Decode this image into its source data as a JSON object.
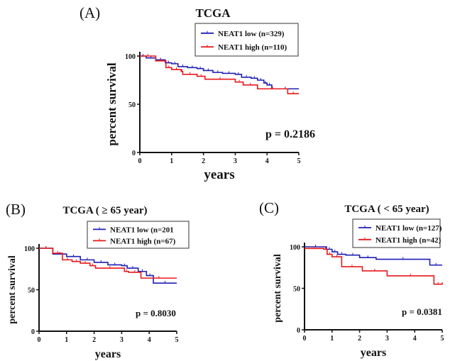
{
  "chart_data": [
    {
      "type": "line",
      "panel": "(A)",
      "title": "TCGA",
      "xlabel": "years",
      "ylabel": "percent survival",
      "xlim": [
        0,
        5
      ],
      "ylim": [
        0,
        100
      ],
      "xticks": [
        "0",
        "1",
        "2",
        "3",
        "4",
        "5"
      ],
      "yticks": [
        "0",
        "50",
        "100"
      ],
      "annotation": "p = 0.2186",
      "legend_position": "top-right",
      "series": [
        {
          "name": "NEAT1 low (n=329)",
          "color": "#1f1fb4",
          "points": [
            [
              0,
              100
            ],
            [
              0.2,
              98
            ],
            [
              0.5,
              96
            ],
            [
              0.8,
              93
            ],
            [
              1,
              92
            ],
            [
              1.2,
              89
            ],
            [
              1.5,
              88
            ],
            [
              1.8,
              87
            ],
            [
              2,
              85
            ],
            [
              2.3,
              83
            ],
            [
              2.6,
              82
            ],
            [
              3,
              81
            ],
            [
              3.2,
              78
            ],
            [
              3.5,
              77
            ],
            [
              3.7,
              75
            ],
            [
              3.9,
              72
            ],
            [
              4,
              70
            ],
            [
              4.15,
              66
            ],
            [
              5,
              66
            ]
          ]
        },
        {
          "name": "NEAT1 high (n=110)",
          "color": "#e8191c",
          "points": [
            [
              0,
              100
            ],
            [
              0.5,
              95
            ],
            [
              0.82,
              88
            ],
            [
              1,
              86
            ],
            [
              1.3,
              84
            ],
            [
              1.35,
              81
            ],
            [
              1.8,
              79
            ],
            [
              2.05,
              76
            ],
            [
              3,
              73
            ],
            [
              3.25,
              70
            ],
            [
              3.7,
              66
            ],
            [
              4.65,
              61
            ],
            [
              5,
              61
            ]
          ]
        }
      ]
    },
    {
      "type": "line",
      "panel": "(B)",
      "title": "TCGA ( ≥ 65 year)",
      "xlabel": "years",
      "ylabel": "percent survival",
      "xlim": [
        0,
        5
      ],
      "ylim": [
        0,
        100
      ],
      "xticks": [
        "0",
        "1",
        "2",
        "3",
        "4",
        "5"
      ],
      "yticks": [
        "0",
        "50",
        "100"
      ],
      "annotation": "p = 0.8030",
      "legend_position": "top-right",
      "series": [
        {
          "name": "NEAT1 low (n=201",
          "color": "#1f1fb4",
          "points": [
            [
              0,
              100
            ],
            [
              0.5,
              93
            ],
            [
              1,
              90
            ],
            [
              1.5,
              86
            ],
            [
              2,
              83
            ],
            [
              2.5,
              80
            ],
            [
              3,
              79
            ],
            [
              3.2,
              76
            ],
            [
              3.6,
              72
            ],
            [
              3.9,
              67
            ],
            [
              4.15,
              58
            ],
            [
              5,
              58
            ]
          ]
        },
        {
          "name": "NEAT1 high (n=67)",
          "color": "#e8191c",
          "points": [
            [
              0,
              100
            ],
            [
              0.5,
              94
            ],
            [
              0.85,
              86
            ],
            [
              1.2,
              84
            ],
            [
              1.5,
              82
            ],
            [
              1.85,
              79
            ],
            [
              2.05,
              76
            ],
            [
              3.1,
              72
            ],
            [
              3.25,
              71
            ],
            [
              3.7,
              64
            ],
            [
              5,
              64
            ]
          ]
        }
      ]
    },
    {
      "type": "line",
      "panel": "(C)",
      "title": "TCGA ( < 65 year)",
      "xlabel": "years",
      "ylabel": "percent survival",
      "xlim": [
        0,
        5
      ],
      "ylim": [
        0,
        100
      ],
      "xticks": [
        "0",
        "1",
        "2",
        "3",
        "4",
        "5"
      ],
      "yticks": [
        "0",
        "50",
        "100"
      ],
      "annotation": "p = 0.0381",
      "legend_position": "top-right",
      "series": [
        {
          "name": "NEAT1 low (n=127)",
          "color": "#1f1fb4",
          "points": [
            [
              0,
              100
            ],
            [
              0.8,
              97
            ],
            [
              1,
              94
            ],
            [
              1.2,
              91
            ],
            [
              1.5,
              90
            ],
            [
              2,
              87
            ],
            [
              2.6,
              85
            ],
            [
              4.55,
              78
            ],
            [
              5,
              78
            ]
          ]
        },
        {
          "name": "NEAT1 high (n=42)",
          "color": "#e8191c",
          "points": [
            [
              0,
              98
            ],
            [
              0.7,
              97
            ],
            [
              0.82,
              91
            ],
            [
              1,
              88
            ],
            [
              1.35,
              76
            ],
            [
              2.1,
              71
            ],
            [
              3,
              65
            ],
            [
              4.7,
              55
            ],
            [
              5,
              57
            ]
          ]
        }
      ]
    }
  ]
}
